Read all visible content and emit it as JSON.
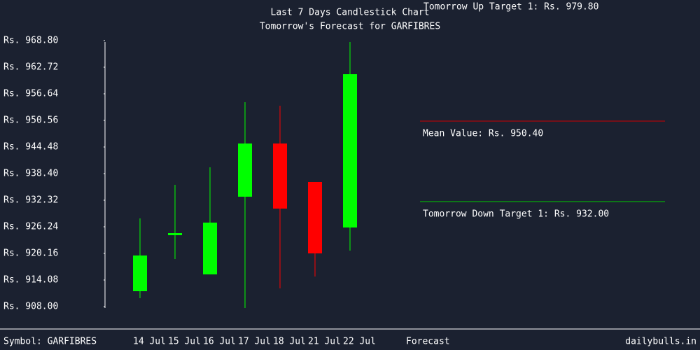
{
  "chart_data": {
    "type": "candlestick",
    "title": "Last 7 Days Candlestick Chart",
    "subtitle": "Tomorrow's Forecast for GARFIBRES",
    "categories": [
      "14 Jul",
      "15 Jul",
      "16 Jul",
      "17 Jul",
      "18 Jul",
      "21 Jul",
      "22 Jul"
    ],
    "open": [
      911.52,
      924.32,
      915.36,
      933.12,
      945.28,
      936.48,
      926.08
    ],
    "high": [
      928.16,
      935.84,
      939.84,
      954.72,
      953.92,
      936.48,
      968.48
    ],
    "low": [
      909.92,
      918.88,
      915.36,
      907.68,
      912.16,
      914.88,
      920.8
    ],
    "close": [
      919.68,
      924.8,
      927.2,
      945.28,
      930.4,
      920.16,
      961.12
    ],
    "up_color": "#00ff00",
    "down_color": "#ff0000",
    "ylim": [
      908,
      968.8
    ],
    "yticks": [
      {
        "value": 968.8,
        "label": "Rs. 968.80"
      },
      {
        "value": 962.72,
        "label": "Rs. 962.72"
      },
      {
        "value": 956.64,
        "label": "Rs. 956.64"
      },
      {
        "value": 950.56,
        "label": "Rs. 950.56"
      },
      {
        "value": 944.48,
        "label": "Rs. 944.48"
      },
      {
        "value": 938.4,
        "label": "Rs. 938.40"
      },
      {
        "value": 932.32,
        "label": "Rs. 932.32"
      },
      {
        "value": 926.24,
        "label": "Rs. 926.24"
      },
      {
        "value": 920.16,
        "label": "Rs. 920.16"
      },
      {
        "value": 914.08,
        "label": "Rs. 914.08"
      },
      {
        "value": 908,
        "label": "Rs. 908.00"
      }
    ],
    "up_target_text": "Tomorrow Up Target 1: Rs. 979.80",
    "forecast_lines": [
      {
        "label": "Mean Value: Rs. 950.40",
        "value": 950.4,
        "color": "#cc0000"
      },
      {
        "label": "Tomorrow Down Target 1: Rs. 932.00",
        "value": 932,
        "color": "#00cc00"
      }
    ],
    "forecast_label": "Forecast",
    "symbol_text": "Symbol: GARFIBRES",
    "source": "dailybulls.in"
  }
}
